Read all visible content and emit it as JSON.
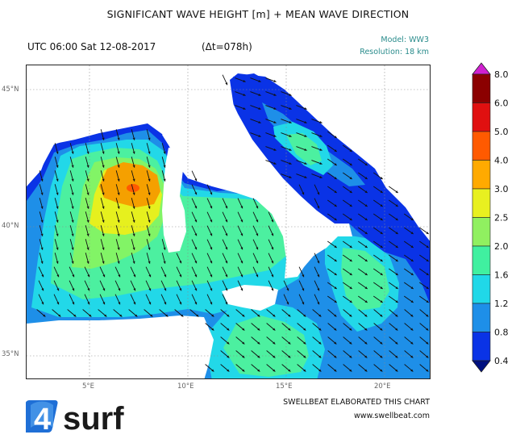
{
  "header": {
    "title": "SIGNIFICANT WAVE HEIGHT [m] + MEAN WAVE DIRECTION",
    "time": "UTC 06:00 Sat 12-08-2017",
    "lead": "(Δt=078h)",
    "model": "Model: WW3",
    "resolution": "Resolution: 18 km"
  },
  "map": {
    "region": "Western & Central Mediterranean",
    "lat_labels": [
      "45°N",
      "40°N",
      "35°N"
    ],
    "lon_labels": [
      "5°E",
      "10°E",
      "15°E",
      "20°E"
    ],
    "colors": {
      "sea_low": "#0a33e6",
      "sea_mid": "#1e8fe8",
      "cyan": "#22d8e8",
      "green_light": "#4cf0a0",
      "green": "#82f466",
      "yellow": "#e6f01e",
      "orange": "#f5a000",
      "land": "#ffffff"
    },
    "arrow_direction": "south-east"
  },
  "colorbar": {
    "levels": [
      "8.0",
      "6.0",
      "5.0",
      "4.0",
      "3.0",
      "2.5",
      "2.0",
      "1.6",
      "1.2",
      "0.8",
      "0.4"
    ],
    "colors": [
      "#8b0000",
      "#e01010",
      "#ff5a00",
      "#ffaa00",
      "#e8f020",
      "#90f060",
      "#40f0a0",
      "#20d8e8",
      "#1e8fe8",
      "#0a33e6"
    ],
    "top_color": "#d020d0",
    "bottom_color": "#001080"
  },
  "footer": {
    "credit": "SWELLBEAT ELABORATED THIS CHART",
    "url": "www.swellbeat.com",
    "logo_number": "4",
    "logo_text": "surf"
  }
}
